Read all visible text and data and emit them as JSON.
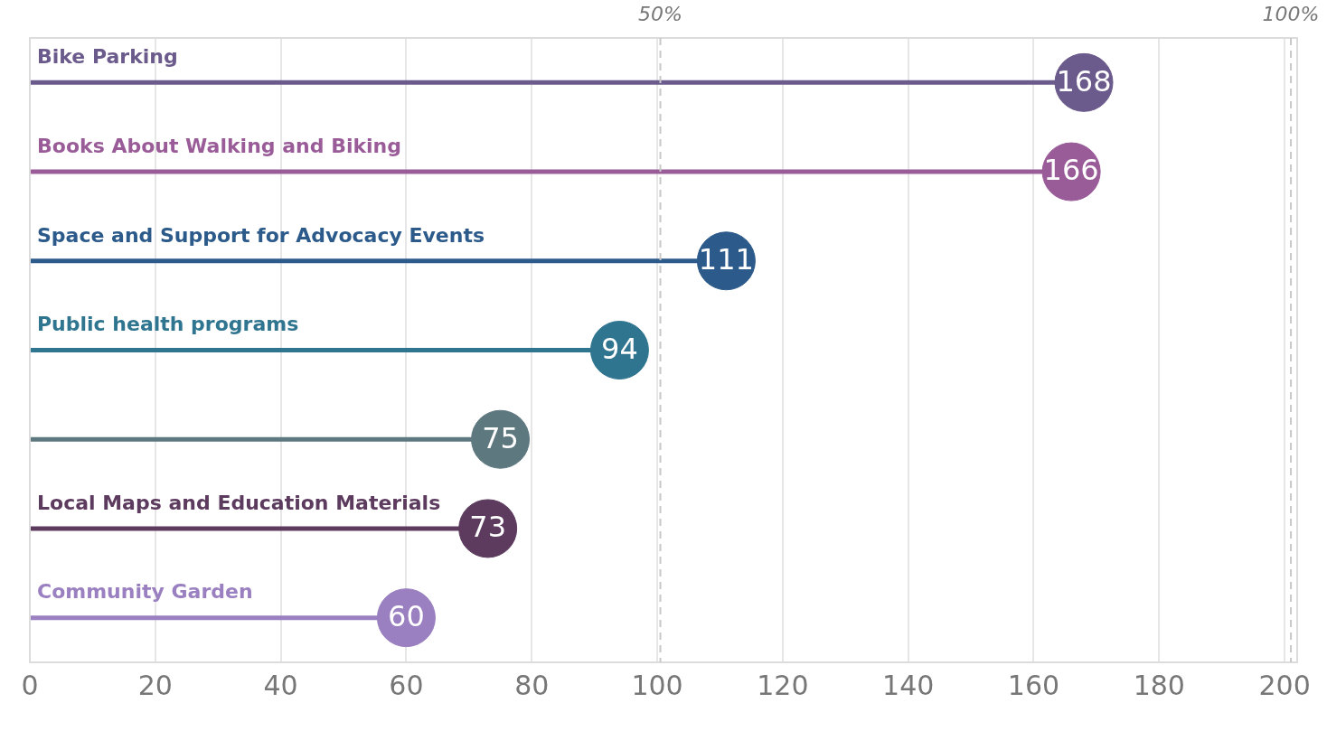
{
  "chart_data": {
    "type": "lollipop",
    "orientation": "horizontal",
    "categories": [
      "Bike Parking",
      "Books About Walking and Biking",
      "Space and Support for Advocacy Events",
      "Public health programs",
      null,
      "Local Maps and Education Materials",
      "Community Garden"
    ],
    "values": [
      168,
      166,
      111,
      94,
      75,
      73,
      60
    ],
    "colors": [
      "#6b5a8c",
      "#9a5c98",
      "#2c5a8a",
      "#2f7590",
      "#5e7880",
      "#5c3b5e",
      "#9a80c0"
    ],
    "xlim": [
      0,
      202
    ],
    "xticks": [
      0,
      20,
      40,
      60,
      80,
      100,
      120,
      140,
      160,
      180,
      200
    ],
    "ref_lines": [
      {
        "axis": "x",
        "value": 100.5,
        "line_style": "dashed",
        "color": "#c8c8c8"
      },
      {
        "axis": "x",
        "value": 201,
        "line_style": "dashed",
        "color": "#c8c8c8"
      }
    ],
    "annotations": [
      "50%",
      "100%"
    ],
    "data_labels": true,
    "grid": "x",
    "legend": false
  }
}
